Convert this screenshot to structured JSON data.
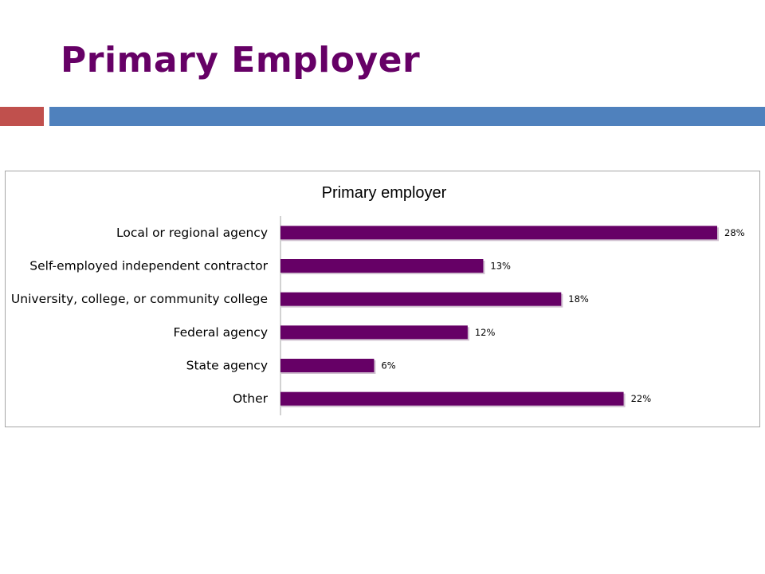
{
  "slide": {
    "title": "Primary Employer",
    "accent_colors": {
      "red": "#c0504d",
      "blue": "#4f81bd",
      "title": "#660066"
    }
  },
  "chart_data": {
    "type": "bar",
    "orientation": "horizontal",
    "title": "Primary employer",
    "categories": [
      "Local or regional agency",
      "Self-employed independent contractor",
      "University, college, or community college",
      "Federal agency",
      "State agency",
      "Other"
    ],
    "values": [
      28,
      13,
      18,
      12,
      6,
      22
    ],
    "data_labels": [
      "28%",
      "13%",
      "18%",
      "12%",
      "6%",
      "22%"
    ],
    "unit": "%",
    "bar_color": "#660066",
    "xlim": [
      0,
      28
    ],
    "xlabel": "",
    "ylabel": "",
    "grid": false,
    "legend": "none"
  }
}
